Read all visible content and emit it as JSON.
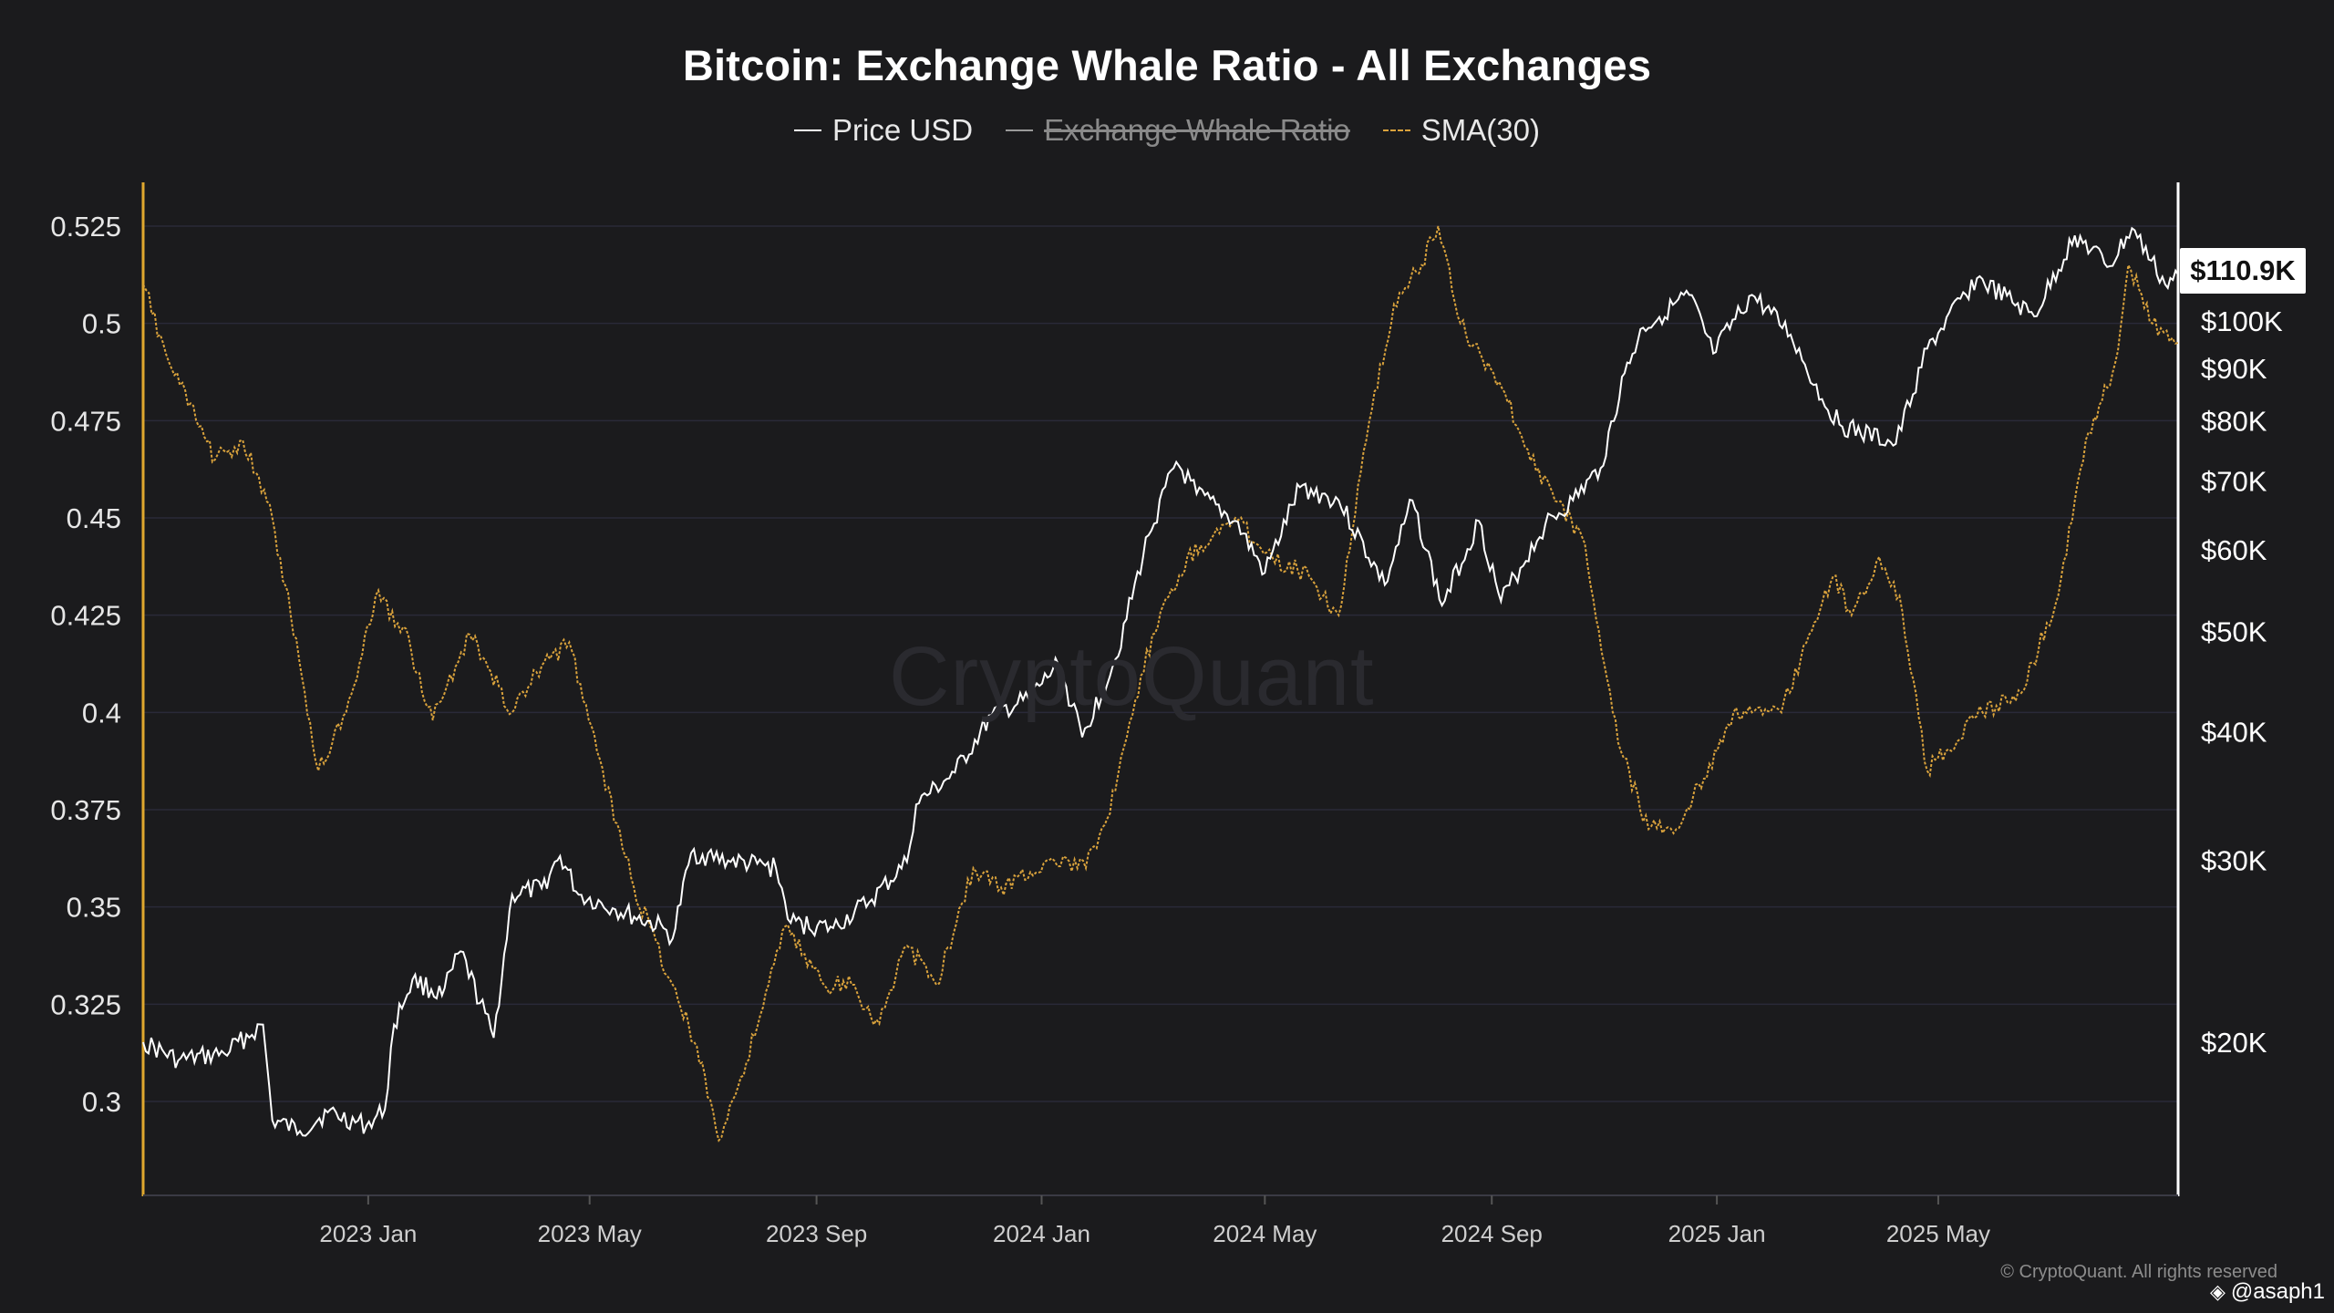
{
  "title": "Bitcoin: Exchange Whale Ratio - All Exchanges",
  "legend": [
    {
      "label": "Price USD",
      "active": true,
      "color": "#ffffff"
    },
    {
      "label": "Exchange Whale Ratio",
      "active": false,
      "color": "#9a9a9a"
    },
    {
      "label": "SMA(30)",
      "active": true,
      "color": "#d9a23c"
    }
  ],
  "price_tag": "$110.9K",
  "watermark": "CryptoQuant",
  "copyright": "© CryptoQuant. All rights reserved",
  "author": "@asaph1",
  "colors": {
    "background": "#1b1b1d",
    "price_line": "#ffffff",
    "sma_line": "#d9a23c",
    "left_axis": "#e0a82e",
    "grid": "#2a2a38"
  },
  "chart_data": {
    "type": "line",
    "title": "Bitcoin: Exchange Whale Ratio - All Exchanges",
    "x_ticks": [
      "2023 Jan",
      "2023 May",
      "2023 Sep",
      "2024 Jan",
      "2024 May",
      "2024 Sep",
      "2025 Jan",
      "2025 May"
    ],
    "x_range": [
      "2022-09-01",
      "2025-09-08"
    ],
    "y_left": {
      "label": "",
      "range": [
        0.276,
        0.526
      ],
      "ticks": [
        "0.525",
        "0.5",
        "0.475",
        "0.45",
        "0.425",
        "0.4",
        "0.375",
        "0.35",
        "0.325",
        "0.3"
      ],
      "tick_values": [
        0.525,
        0.5,
        0.475,
        0.45,
        0.425,
        0.4,
        0.375,
        0.35,
        0.325,
        0.3
      ]
    },
    "y_right": {
      "label": "",
      "scale": "log",
      "ticks": [
        "$100K",
        "$90K",
        "$80K",
        "$70K",
        "$60K",
        "$50K",
        "$40K",
        "$30K",
        "$20K"
      ],
      "tick_values": [
        100000,
        90000,
        80000,
        70000,
        60000,
        50000,
        40000,
        30000,
        20000
      ]
    },
    "grid": true,
    "legend_position": "top-center",
    "series": [
      {
        "name": "Price USD",
        "axis": "right",
        "points": [
          [
            "2022-09-01",
            20000
          ],
          [
            "2022-09-20",
            19200
          ],
          [
            "2022-10-15",
            19500
          ],
          [
            "2022-11-05",
            20800
          ],
          [
            "2022-11-10",
            16800
          ],
          [
            "2022-11-25",
            16400
          ],
          [
            "2022-12-10",
            17100
          ],
          [
            "2022-12-31",
            16600
          ],
          [
            "2023-01-10",
            17200
          ],
          [
            "2023-01-15",
            20800
          ],
          [
            "2023-01-25",
            23000
          ],
          [
            "2023-02-10",
            22200
          ],
          [
            "2023-02-20",
            24500
          ],
          [
            "2023-03-10",
            20200
          ],
          [
            "2023-03-20",
            27800
          ],
          [
            "2023-04-05",
            28200
          ],
          [
            "2023-04-15",
            30300
          ],
          [
            "2023-04-25",
            27800
          ],
          [
            "2023-05-15",
            26900
          ],
          [
            "2023-06-10",
            25800
          ],
          [
            "2023-06-15",
            25200
          ],
          [
            "2023-06-25",
            30500
          ],
          [
            "2023-07-15",
            30000
          ],
          [
            "2023-08-10",
            29500
          ],
          [
            "2023-08-18",
            26100
          ],
          [
            "2023-09-10",
            25800
          ],
          [
            "2023-10-01",
            27500
          ],
          [
            "2023-10-20",
            29900
          ],
          [
            "2023-10-25",
            34000
          ],
          [
            "2023-11-15",
            36500
          ],
          [
            "2023-12-05",
            41500
          ],
          [
            "2023-12-25",
            43000
          ],
          [
            "2024-01-10",
            46500
          ],
          [
            "2024-01-23",
            39500
          ],
          [
            "2024-02-10",
            47000
          ],
          [
            "2024-02-28",
            62000
          ],
          [
            "2024-03-14",
            73000
          ],
          [
            "2024-03-25",
            68000
          ],
          [
            "2024-04-15",
            64000
          ],
          [
            "2024-05-01",
            57000
          ],
          [
            "2024-05-20",
            69000
          ],
          [
            "2024-06-10",
            67000
          ],
          [
            "2024-07-05",
            55500
          ],
          [
            "2024-07-20",
            67000
          ],
          [
            "2024-08-05",
            53000
          ],
          [
            "2024-08-25",
            64000
          ],
          [
            "2024-09-06",
            53500
          ],
          [
            "2024-09-30",
            63500
          ],
          [
            "2024-10-15",
            67000
          ],
          [
            "2024-10-30",
            72000
          ],
          [
            "2024-11-12",
            89000
          ],
          [
            "2024-11-22",
            98500
          ],
          [
            "2024-12-17",
            106000
          ],
          [
            "2024-12-30",
            93000
          ],
          [
            "2025-01-20",
            106000
          ],
          [
            "2025-02-10",
            97000
          ],
          [
            "2025-02-27",
            84000
          ],
          [
            "2025-03-10",
            79000
          ],
          [
            "2025-04-08",
            76000
          ],
          [
            "2025-04-25",
            94000
          ],
          [
            "2025-05-22",
            110000
          ],
          [
            "2025-06-22",
            101000
          ],
          [
            "2025-07-14",
            121000
          ],
          [
            "2025-08-02",
            113000
          ],
          [
            "2025-08-14",
            123000
          ],
          [
            "2025-09-01",
            108500
          ],
          [
            "2025-09-08",
            110900
          ]
        ]
      },
      {
        "name": "SMA(30)",
        "axis": "left",
        "points": [
          [
            "2022-09-01",
            0.51
          ],
          [
            "2022-09-15",
            0.49
          ],
          [
            "2022-10-10",
            0.465
          ],
          [
            "2022-10-25",
            0.47
          ],
          [
            "2022-11-10",
            0.45
          ],
          [
            "2022-11-20",
            0.425
          ],
          [
            "2022-12-05",
            0.385
          ],
          [
            "2022-12-20",
            0.4
          ],
          [
            "2023-01-05",
            0.43
          ],
          [
            "2023-01-20",
            0.422
          ],
          [
            "2023-02-05",
            0.398
          ],
          [
            "2023-02-25",
            0.42
          ],
          [
            "2023-03-20",
            0.4
          ],
          [
            "2023-04-05",
            0.412
          ],
          [
            "2023-04-20",
            0.418
          ],
          [
            "2023-05-05",
            0.39
          ],
          [
            "2023-05-25",
            0.355
          ],
          [
            "2023-06-15",
            0.33
          ],
          [
            "2023-07-01",
            0.31
          ],
          [
            "2023-07-10",
            0.29
          ],
          [
            "2023-07-25",
            0.31
          ],
          [
            "2023-08-15",
            0.345
          ],
          [
            "2023-09-05",
            0.33
          ],
          [
            "2023-09-20",
            0.33
          ],
          [
            "2023-10-05",
            0.32
          ],
          [
            "2023-10-20",
            0.34
          ],
          [
            "2023-11-05",
            0.33
          ],
          [
            "2023-11-25",
            0.36
          ],
          [
            "2023-12-10",
            0.355
          ],
          [
            "2024-01-05",
            0.362
          ],
          [
            "2024-01-25",
            0.36
          ],
          [
            "2024-02-10",
            0.38
          ],
          [
            "2024-03-01",
            0.42
          ],
          [
            "2024-03-20",
            0.44
          ],
          [
            "2024-04-15",
            0.45
          ],
          [
            "2024-05-05",
            0.44
          ],
          [
            "2024-05-25",
            0.435
          ],
          [
            "2024-06-10",
            0.425
          ],
          [
            "2024-06-25",
            0.47
          ],
          [
            "2024-07-10",
            0.505
          ],
          [
            "2024-07-25",
            0.515
          ],
          [
            "2024-08-03",
            0.525
          ],
          [
            "2024-08-15",
            0.5
          ],
          [
            "2024-09-05",
            0.485
          ],
          [
            "2024-09-25",
            0.462
          ],
          [
            "2024-10-20",
            0.445
          ],
          [
            "2024-11-10",
            0.39
          ],
          [
            "2024-11-25",
            0.37
          ],
          [
            "2024-12-10",
            0.37
          ],
          [
            "2024-12-25",
            0.383
          ],
          [
            "2025-01-10",
            0.4
          ],
          [
            "2025-01-20",
            0.4
          ],
          [
            "2025-02-05",
            0.4
          ],
          [
            "2025-02-20",
            0.42
          ],
          [
            "2025-03-05",
            0.435
          ],
          [
            "2025-03-15",
            0.425
          ],
          [
            "2025-03-30",
            0.44
          ],
          [
            "2025-04-10",
            0.43
          ],
          [
            "2025-04-25",
            0.385
          ],
          [
            "2025-05-05",
            0.39
          ],
          [
            "2025-05-25",
            0.4
          ],
          [
            "2025-06-15",
            0.405
          ],
          [
            "2025-07-05",
            0.43
          ],
          [
            "2025-07-20",
            0.47
          ],
          [
            "2025-08-05",
            0.49
          ],
          [
            "2025-08-12",
            0.515
          ],
          [
            "2025-08-25",
            0.5
          ],
          [
            "2025-09-08",
            0.495
          ]
        ]
      }
    ]
  }
}
